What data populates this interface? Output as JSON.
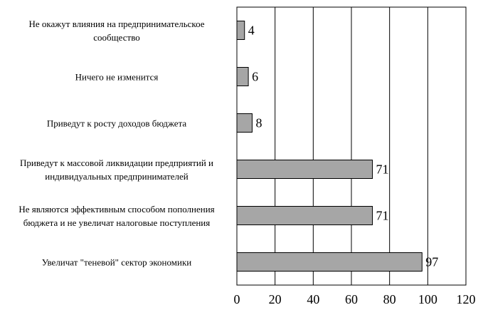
{
  "chart_data": {
    "type": "bar",
    "orientation": "horizontal",
    "categories": [
      "Не окажут влияния на предпринимательское\nсообщество",
      "Ничего не изменится",
      "Приведут к росту доходов бюджета",
      "Приведут к массовой ликвидации предприятий и\nиндивидуальных предпринимателей",
      "Не являются эффективным способом пополнения\nбюджета и не увеличат налоговые поступления",
      "Увеличат \"теневой\" сектор экономики"
    ],
    "values": [
      4,
      6,
      8,
      71,
      71,
      97
    ],
    "color": "#a6a6a6",
    "xlim": [
      0,
      120
    ],
    "xticks": [
      0,
      20,
      40,
      60,
      80,
      100,
      120
    ],
    "grid": true
  }
}
